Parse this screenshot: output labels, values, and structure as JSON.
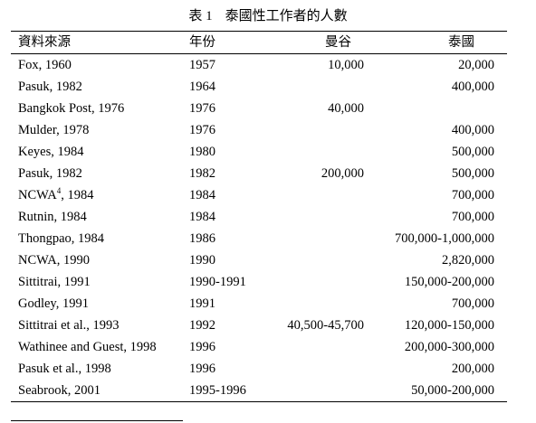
{
  "caption": {
    "number": "表 1",
    "title": "泰國性工作者的人數"
  },
  "columns": {
    "source": "資料來源",
    "year": "年份",
    "bangkok": "曼谷",
    "thailand": "泰國"
  },
  "rows": [
    {
      "source": "Fox, 1960",
      "sup": "",
      "source_rest": "",
      "year": "1957",
      "bangkok": "10,000",
      "thailand": "20,000"
    },
    {
      "source": "Pasuk, 1982",
      "sup": "",
      "source_rest": "",
      "year": "1964",
      "bangkok": "",
      "thailand": "400,000"
    },
    {
      "source": "Bangkok Post, 1976",
      "sup": "",
      "source_rest": "",
      "year": "1976",
      "bangkok": "40,000",
      "thailand": ""
    },
    {
      "source": "Mulder, 1978",
      "sup": "",
      "source_rest": "",
      "year": "1976",
      "bangkok": "",
      "thailand": "400,000"
    },
    {
      "source": "Keyes, 1984",
      "sup": "",
      "source_rest": "",
      "year": "1980",
      "bangkok": "",
      "thailand": "500,000"
    },
    {
      "source": "Pasuk, 1982",
      "sup": "",
      "source_rest": "",
      "year": "1982",
      "bangkok": "200,000",
      "thailand": "500,000"
    },
    {
      "source": "NCWA",
      "sup": "4",
      "source_rest": ", 1984",
      "year": "1984",
      "bangkok": "",
      "thailand": "700,000"
    },
    {
      "source": "Rutnin, 1984",
      "sup": "",
      "source_rest": "",
      "year": "1984",
      "bangkok": "",
      "thailand": "700,000"
    },
    {
      "source": "Thongpao, 1984",
      "sup": "",
      "source_rest": "",
      "year": "1986",
      "bangkok": "",
      "thailand": "700,000-1,000,000"
    },
    {
      "source": "NCWA, 1990",
      "sup": "",
      "source_rest": "",
      "year": "1990",
      "bangkok": "",
      "thailand": "2,820,000"
    },
    {
      "source": "Sittitrai, 1991",
      "sup": "",
      "source_rest": "",
      "year": "1990-1991",
      "bangkok": "",
      "thailand": "150,000-200,000"
    },
    {
      "source": "Godley, 1991",
      "sup": "",
      "source_rest": "",
      "year": "1991",
      "bangkok": "",
      "thailand": "700,000"
    },
    {
      "source": "Sittitrai et al., 1993",
      "sup": "",
      "source_rest": "",
      "year": "1992",
      "bangkok": "40,500-45,700",
      "thailand": "120,000-150,000"
    },
    {
      "source": "Wathinee and Guest, 1998",
      "sup": "",
      "source_rest": "",
      "year": "1996",
      "bangkok": "",
      "thailand": "200,000-300,000"
    },
    {
      "source": "Pasuk et al., 1998",
      "sup": "",
      "source_rest": "",
      "year": "1996",
      "bangkok": "",
      "thailand": "200,000"
    },
    {
      "source": "Seabrook, 2001",
      "sup": "",
      "source_rest": "",
      "year": "1995-1996",
      "bangkok": "",
      "thailand": "50,000-200,000"
    }
  ]
}
